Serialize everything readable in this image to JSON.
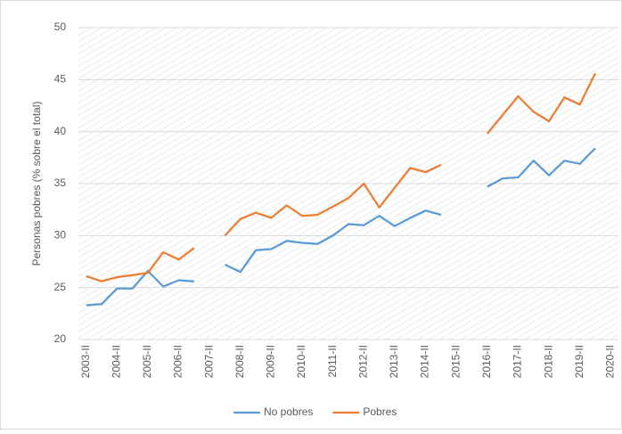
{
  "chart_data": {
    "type": "line",
    "y_label": "Personas pobres (% sobre el total)",
    "categories": [
      "2003-II",
      null,
      "2004-II",
      null,
      "2005-II",
      null,
      "2006-II",
      null,
      "2007-II",
      null,
      "2008-II",
      null,
      "2009-II",
      null,
      "2010-II",
      null,
      "2011-II",
      null,
      "2012-II",
      null,
      "2013-II",
      null,
      "2014-II",
      null,
      "2015-II",
      null,
      "2016-II",
      null,
      "2017-II",
      null,
      "2018-II",
      null,
      "2019-II",
      null,
      "2020-II"
    ],
    "series": [
      {
        "name": "No pobres",
        "color": "#5b9bd5",
        "values": [
          23.3,
          23.4,
          24.9,
          24.9,
          26.6,
          25.1,
          25.7,
          25.6,
          null,
          27.2,
          26.5,
          28.6,
          28.7,
          29.5,
          29.3,
          29.2,
          30.0,
          31.1,
          31.0,
          31.9,
          30.9,
          31.7,
          32.4,
          32.0,
          null,
          null,
          34.7,
          35.5,
          35.6,
          37.2,
          35.8,
          37.2,
          36.9,
          38.4,
          null
        ]
      },
      {
        "name": "Pobres",
        "color": "#ed7d31",
        "values": [
          26.1,
          25.6,
          26.0,
          26.2,
          26.4,
          28.4,
          27.7,
          28.8,
          null,
          30.0,
          31.6,
          32.2,
          31.7,
          32.9,
          31.9,
          32.0,
          32.8,
          33.6,
          35.0,
          32.7,
          34.6,
          36.5,
          36.1,
          36.8,
          null,
          null,
          39.8,
          41.6,
          43.4,
          41.9,
          41.0,
          43.3,
          42.6,
          45.6,
          null
        ]
      }
    ],
    "ylim": [
      20,
      50
    ],
    "yticks": [
      20,
      25,
      30,
      35,
      40,
      45,
      50
    ],
    "grid": true,
    "legend": "bottom"
  }
}
